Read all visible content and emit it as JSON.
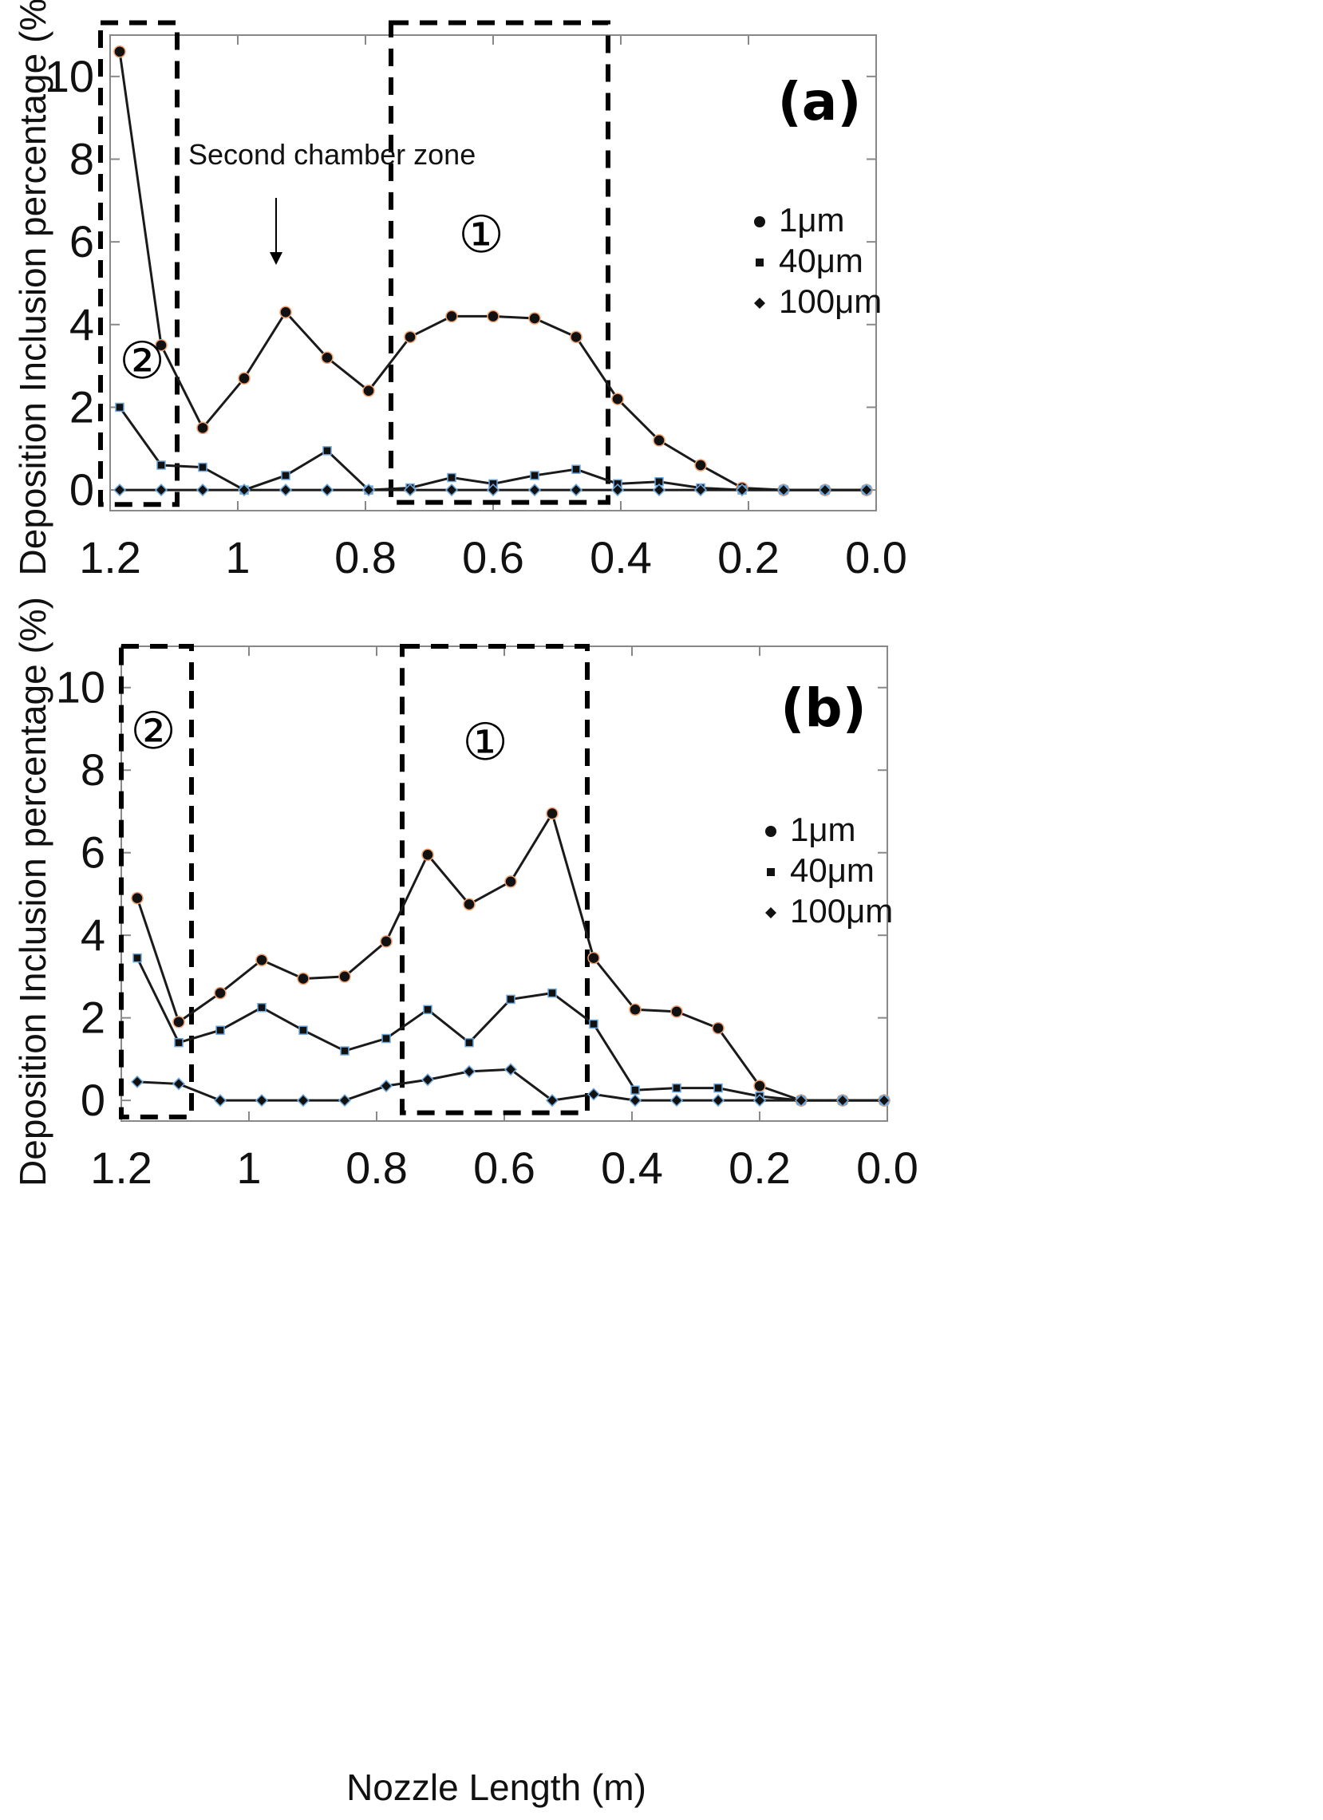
{
  "x_axis_label": "Nozzle Length (m)",
  "chart_data": [
    {
      "type": "line",
      "panel_label": "(a)",
      "ylabel": "Deposition Inclusion percentage (%)",
      "xlabel": "Nozzle Length (m)",
      "xlim": [
        1.2,
        0.0
      ],
      "ylim": [
        -0.5,
        11
      ],
      "xticks": [
        "1.2",
        "1",
        "0.8",
        "0.6",
        "0.4",
        "0.2",
        "0.0"
      ],
      "xtick_values": [
        1.2,
        1.0,
        0.8,
        0.6,
        0.4,
        0.2,
        0.0
      ],
      "yticks": [
        "0",
        "2",
        "4",
        "6",
        "8",
        "10"
      ],
      "ytick_values": [
        0,
        2,
        4,
        6,
        8,
        10
      ],
      "x": [
        1.185,
        1.12,
        1.055,
        0.99,
        0.925,
        0.86,
        0.795,
        0.73,
        0.665,
        0.6,
        0.535,
        0.47,
        0.405,
        0.34,
        0.275,
        0.21,
        0.145,
        0.08,
        0.015
      ],
      "series": [
        {
          "name": "1μm",
          "marker": "circle",
          "values": [
            10.6,
            3.5,
            1.5,
            2.7,
            4.3,
            3.2,
            2.4,
            3.7,
            4.2,
            4.2,
            4.15,
            3.7,
            2.2,
            1.2,
            0.6,
            0.05,
            0.0,
            0.0,
            0.0
          ]
        },
        {
          "name": "40μm",
          "marker": "square",
          "values": [
            2.0,
            0.6,
            0.55,
            0.0,
            0.35,
            0.95,
            0.0,
            0.05,
            0.3,
            0.15,
            0.35,
            0.5,
            0.15,
            0.2,
            0.05,
            0.0,
            0.0,
            0.0,
            0.0
          ]
        },
        {
          "name": "100μm",
          "marker": "diamond",
          "values": [
            0,
            0,
            0,
            0,
            0,
            0,
            0,
            0,
            0,
            0,
            0,
            0,
            0,
            0,
            0,
            0,
            0,
            0,
            0
          ]
        }
      ],
      "annotations": [
        {
          "text": "Second chamber zone"
        },
        {
          "text": "①"
        },
        {
          "text": "②"
        }
      ],
      "zones": [
        {
          "label": "②",
          "x_range": [
            1.215,
            1.095
          ],
          "y_range": [
            -0.35,
            11.3
          ]
        },
        {
          "label": "①",
          "x_range": [
            0.76,
            0.42
          ],
          "y_range": [
            -0.3,
            11.3
          ]
        }
      ]
    },
    {
      "type": "line",
      "panel_label": "(b)",
      "ylabel": "Deposition Inclusion percentage (%)",
      "xlabel": "Nozzle Length (m)",
      "xlim": [
        1.2,
        0.0
      ],
      "ylim": [
        -0.5,
        11
      ],
      "xticks": [
        "1.2",
        "1",
        "0.8",
        "0.6",
        "0.4",
        "0.2",
        "0.0"
      ],
      "xtick_values": [
        1.2,
        1.0,
        0.8,
        0.6,
        0.4,
        0.2,
        0.0
      ],
      "yticks": [
        "0",
        "2",
        "4",
        "6",
        "8",
        "10"
      ],
      "ytick_values": [
        0,
        2,
        4,
        6,
        8,
        10
      ],
      "x": [
        1.175,
        1.11,
        1.045,
        0.98,
        0.915,
        0.85,
        0.785,
        0.72,
        0.655,
        0.59,
        0.525,
        0.46,
        0.395,
        0.33,
        0.265,
        0.2,
        0.135,
        0.07,
        0.005
      ],
      "series": [
        {
          "name": "1μm",
          "marker": "circle",
          "values": [
            4.9,
            1.9,
            2.6,
            3.4,
            2.95,
            3.0,
            3.85,
            5.95,
            4.75,
            5.3,
            6.95,
            3.45,
            2.2,
            2.15,
            1.75,
            0.35,
            0.0,
            0.0,
            0.0
          ]
        },
        {
          "name": "40μm",
          "marker": "square",
          "values": [
            3.45,
            1.4,
            1.7,
            2.25,
            1.7,
            1.2,
            1.5,
            2.2,
            1.4,
            2.45,
            2.6,
            1.85,
            0.25,
            0.3,
            0.3,
            0.1,
            0.0,
            0.0,
            0.0
          ]
        },
        {
          "name": "100μm",
          "marker": "diamond",
          "values": [
            0.45,
            0.4,
            0.0,
            0.0,
            0.0,
            0.0,
            0.35,
            0.5,
            0.7,
            0.75,
            0.0,
            0.15,
            0.0,
            0.0,
            0.0,
            0.0,
            0.0,
            0.0,
            0.0
          ]
        }
      ],
      "annotations": [
        {
          "text": "①"
        },
        {
          "text": "②"
        }
      ],
      "zones": [
        {
          "label": "②",
          "x_range": [
            1.2,
            1.09
          ],
          "y_range": [
            -0.4,
            11
          ]
        },
        {
          "label": "①",
          "x_range": [
            0.76,
            0.47
          ],
          "y_range": [
            -0.3,
            11
          ]
        }
      ]
    }
  ]
}
